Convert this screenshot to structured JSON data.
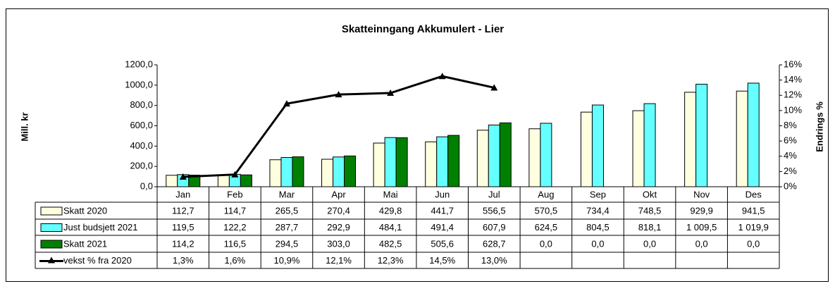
{
  "chart_data": {
    "type": "bar",
    "title": "Skatteinngang Akkumulert  - Lier",
    "ylabel": "Mill. kr",
    "y2label": "Endrings %",
    "categories": [
      "Jan",
      "Feb",
      "Mar",
      "Apr",
      "Mai",
      "Jun",
      "Jul",
      "Aug",
      "Sep",
      "Okt",
      "Nov",
      "Des"
    ],
    "ylim": [
      0,
      1200
    ],
    "yticks": [
      {
        "value": 0,
        "label": "0,0"
      },
      {
        "value": 200,
        "label": "200,0"
      },
      {
        "value": 400,
        "label": "400,0"
      },
      {
        "value": 600,
        "label": "600,0"
      },
      {
        "value": 800,
        "label": "800,0"
      },
      {
        "value": 1000,
        "label": "1000,0"
      },
      {
        "value": 1200,
        "label": "1200,0"
      }
    ],
    "y2lim": [
      0,
      16
    ],
    "y2ticks": [
      {
        "value": 0,
        "label": "0%"
      },
      {
        "value": 2,
        "label": "2%"
      },
      {
        "value": 4,
        "label": "4%"
      },
      {
        "value": 6,
        "label": "6%"
      },
      {
        "value": 8,
        "label": "8%"
      },
      {
        "value": 10,
        "label": "10%"
      },
      {
        "value": 12,
        "label": "12%"
      },
      {
        "value": 14,
        "label": "14%"
      },
      {
        "value": 16,
        "label": "16%"
      }
    ],
    "series": [
      {
        "name": "Skatt 2020",
        "type": "bar",
        "color": "#ffffe0",
        "values": [
          112.7,
          114.7,
          265.5,
          270.4,
          429.8,
          441.7,
          556.5,
          570.5,
          734.4,
          748.5,
          929.9,
          941.5
        ],
        "value_labels": [
          "112,7",
          "114,7",
          "265,5",
          "270,4",
          "429,8",
          "441,7",
          "556,5",
          "570,5",
          "734,4",
          "748,5",
          "929,9",
          "941,5"
        ]
      },
      {
        "name": "Just budsjett 2021",
        "type": "bar",
        "color": "#66ffff",
        "values": [
          119.5,
          122.2,
          287.7,
          292.9,
          484.1,
          491.4,
          607.9,
          624.5,
          804.5,
          818.1,
          1009.5,
          1019.9
        ],
        "value_labels": [
          "119,5",
          "122,2",
          "287,7",
          "292,9",
          "484,1",
          "491,4",
          "607,9",
          "624,5",
          "804,5",
          "818,1",
          "1 009,5",
          "1 019,9"
        ]
      },
      {
        "name": "Skatt 2021",
        "type": "bar",
        "color": "#008000",
        "values": [
          114.2,
          116.5,
          294.5,
          303.0,
          482.5,
          505.6,
          628.7,
          0,
          0,
          0,
          0,
          0
        ],
        "value_labels": [
          "114,2",
          "116,5",
          "294,5",
          "303,0",
          "482,5",
          "505,6",
          "628,7",
          "0,0",
          "0,0",
          "0,0",
          "0,0",
          "0,0"
        ]
      },
      {
        "name": "vekst % fra 2020",
        "type": "line",
        "axis": "y2",
        "color": "#000000",
        "values": [
          1.3,
          1.6,
          10.9,
          12.1,
          12.3,
          14.5,
          13.0,
          null,
          null,
          null,
          null,
          null
        ],
        "value_labels": [
          "1,3%",
          "1,6%",
          "10,9%",
          "12,1%",
          "12,3%",
          "14,5%",
          "13,0%",
          null,
          null,
          null,
          null,
          null
        ]
      }
    ]
  }
}
